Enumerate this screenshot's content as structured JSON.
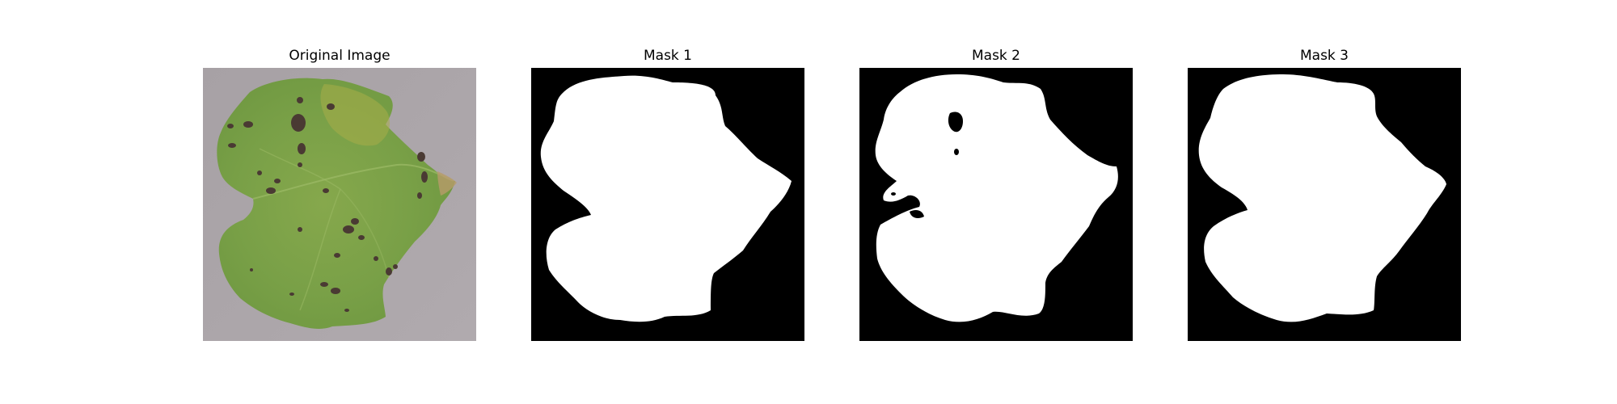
{
  "figure": {
    "panels": [
      {
        "title": "Original Image",
        "kind": "photo",
        "subject": "grape-leaf-with-dark-spots"
      },
      {
        "title": "Mask 1",
        "kind": "mask"
      },
      {
        "title": "Mask 2",
        "kind": "mask"
      },
      {
        "title": "Mask 3",
        "kind": "mask"
      }
    ]
  },
  "colors": {
    "background": "#ffffff",
    "photo_backdrop": "#a9a3a6",
    "leaf_green": "#79a047",
    "leaf_light": "#98b04c",
    "leaf_dark": "#5f8a3c",
    "leaf_spot": "#4a3a33",
    "mask_background": "#000000",
    "mask_foreground": "#ffffff"
  }
}
